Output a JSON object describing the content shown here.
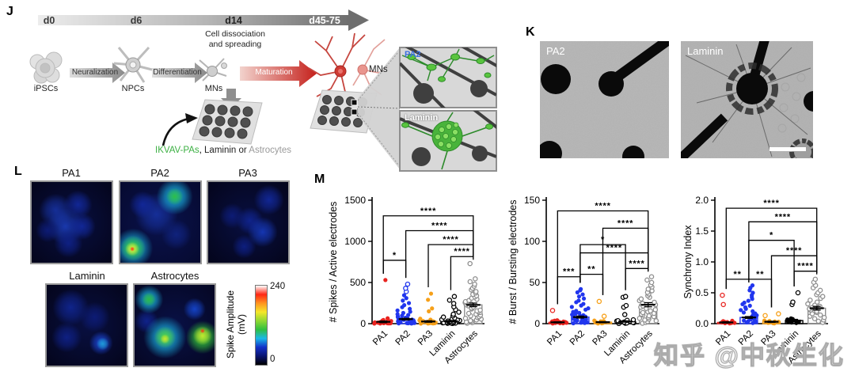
{
  "watermark": "知乎 @中秋生化",
  "panels": {
    "J": {
      "label": "J",
      "timeline": {
        "ticks": [
          "d0",
          "d6",
          "d14",
          "d45-75"
        ]
      },
      "note_line1": "Cell dissociation",
      "note_line2": "and spreading",
      "stage_ipscs": "iPSCs",
      "stage_npcs": "NPCs",
      "stage_mns": "MNs",
      "stage_mns2": "MNs",
      "arrow_neuralization": "Neuralization",
      "arrow_differentiation": "Differentiation",
      "arrow_maturation": "Maturation",
      "substrate_ikvav": "IKVAV-PAs",
      "substrate_sep": ", ",
      "substrate_laminin": "Laminin",
      "substrate_or": " or ",
      "substrate_astrocytes": "Astrocytes",
      "ikvav_color": "#3cb043",
      "astrocyte_color": "#9a9a9a",
      "inset_pa2_label": "PA2",
      "inset_pa2_label_color": "#3b6fe0",
      "inset_laminin_label": "Laminin"
    },
    "K": {
      "label": "K",
      "image1_label": "PA2",
      "image2_label": "Laminin"
    },
    "L": {
      "label": "L",
      "colorbar": {
        "title_line1": "Spike Amplitude",
        "title_line2": "(mV)",
        "max": "240",
        "min": "0",
        "stops": [
          "#000000",
          "#0a1470",
          "#1430c8",
          "#1ab8e8",
          "#2fbf3f",
          "#8fd832",
          "#f5e72a",
          "#ff9420",
          "#ff2613",
          "#ffffff"
        ]
      },
      "heatmaps": [
        {
          "title": "PA1",
          "bg": "#04051c",
          "blobs": [
            [
              30,
              35,
              20,
              "#16309c"
            ],
            [
              58,
              28,
              17,
              "#12289a"
            ],
            [
              42,
              55,
              22,
              "#1a3ab2"
            ],
            [
              63,
              55,
              16,
              "#12289a"
            ],
            [
              46,
              76,
              17,
              "#0f2187"
            ],
            [
              20,
              60,
              14,
              "#0d1c78"
            ]
          ]
        },
        {
          "title": "PA2",
          "bg": "#060a30",
          "blobs": [
            [
              45,
              40,
              26,
              "#16309c"
            ],
            [
              28,
              28,
              16,
              "#12289a"
            ],
            [
              70,
              65,
              18,
              "#10237f"
            ],
            [
              68,
              18,
              22,
              "#1ab8e8"
            ],
            [
              68,
              18,
              10,
              "#2fbf3f"
            ],
            [
              16,
              82,
              24,
              "#1ab8e8"
            ],
            [
              16,
              82,
              15,
              "#35cf3a"
            ],
            [
              15,
              83,
              9,
              "#e8f53a"
            ],
            [
              15,
              83,
              3,
              "#ff2d13"
            ]
          ]
        },
        {
          "title": "PA3",
          "bg": "#04051c",
          "blobs": [
            [
              76,
              22,
              18,
              "#12289a"
            ],
            [
              52,
              48,
              16,
              "#10248f"
            ],
            [
              68,
              62,
              18,
              "#1638b8"
            ],
            [
              30,
              42,
              15,
              "#0d1c78"
            ],
            [
              45,
              80,
              14,
              "#0e1f82"
            ]
          ]
        },
        {
          "title": "Laminin",
          "bg": "#04051c",
          "blobs": [
            [
              30,
              28,
              22,
              "#10258f"
            ],
            [
              60,
              40,
              18,
              "#0d1c78"
            ],
            [
              25,
              65,
              18,
              "#0f2187"
            ],
            [
              68,
              72,
              14,
              "#1c46d8"
            ],
            [
              70,
              73,
              8,
              "#1f9fd8"
            ]
          ]
        },
        {
          "title": "Astrocytes",
          "bg": "#050724",
          "blobs": [
            [
              15,
              45,
              14,
              "#10248f"
            ],
            [
              75,
              30,
              13,
              "#1545cc"
            ],
            [
              18,
              18,
              17,
              "#1ab8e8"
            ],
            [
              18,
              18,
              9,
              "#2eb93c"
            ],
            [
              38,
              65,
              26,
              "#1ab8e8"
            ],
            [
              38,
              65,
              13,
              "#53d437"
            ],
            [
              38,
              67,
              6,
              "#cfe92e"
            ],
            [
              85,
              65,
              20,
              "#35cf3a"
            ],
            [
              85,
              63,
              11,
              "#c8ea2f"
            ],
            [
              85,
              57,
              3,
              "#ff2d13"
            ]
          ]
        }
      ]
    },
    "M": {
      "label": "M"
    }
  },
  "chart_data": [
    {
      "type": "scatter",
      "name": "spikes_per_active_electrode",
      "ylabel": "# Spikes / Active electrodes",
      "xlabel": "",
      "ylim": [
        0,
        1500
      ],
      "yticks": [
        0,
        500,
        1000,
        1500
      ],
      "ytick_labels": [
        "0",
        "500",
        "1000",
        "1500"
      ],
      "categories": [
        "PA1",
        "PA2",
        "PA3",
        "Laminin",
        "Astrocytes"
      ],
      "series": [
        {
          "name": "PA1",
          "color": "#e8231f",
          "marker": "filled",
          "open_above": null,
          "mean": 22,
          "sem": 10,
          "points": [
            1,
            2,
            3,
            4,
            5,
            6,
            8,
            10,
            12,
            14,
            16,
            18,
            20,
            24,
            28,
            32,
            38,
            45,
            55,
            65,
            530
          ]
        },
        {
          "name": "PA2",
          "color": "#2136ee",
          "marker": "filled",
          "open_above": 370,
          "mean": 55,
          "sem": 10,
          "points": [
            2,
            3,
            4,
            5,
            6,
            7,
            8,
            9,
            10,
            11,
            12,
            14,
            16,
            18,
            20,
            22,
            25,
            28,
            31,
            34,
            38,
            42,
            46,
            50,
            55,
            60,
            66,
            72,
            80,
            88,
            96,
            105,
            115,
            130,
            145,
            160,
            180,
            200,
            225,
            250,
            280,
            310,
            345,
            390,
            430,
            480
          ]
        },
        {
          "name": "PA3",
          "color": "#f6a019",
          "marker": "filled",
          "open_above": null,
          "mean": 26,
          "sem": 9,
          "points": [
            1,
            2,
            3,
            4,
            5,
            6,
            8,
            10,
            12,
            14,
            17,
            20,
            24,
            28,
            33,
            40,
            48,
            60,
            150,
            185,
            290,
            365
          ]
        },
        {
          "name": "Laminin",
          "color": "#000000",
          "marker": "open",
          "open_above": null,
          "mean": 30,
          "sem": 9,
          "points": [
            2,
            4,
            6,
            8,
            10,
            12,
            14,
            17,
            20,
            24,
            28,
            33,
            38,
            44,
            50,
            58,
            68,
            80,
            95,
            115,
            140,
            170,
            205,
            245,
            285,
            330
          ]
        },
        {
          "name": "Astrocytes",
          "color": "#8f8f8f",
          "marker": "open",
          "open_above": null,
          "mean": 228,
          "sem": 22,
          "points": [
            5,
            12,
            20,
            28,
            36,
            45,
            55,
            65,
            75,
            85,
            95,
            105,
            115,
            125,
            135,
            145,
            155,
            165,
            178,
            190,
            203,
            216,
            229,
            242,
            255,
            268,
            282,
            296,
            310,
            325,
            340,
            356,
            372,
            390,
            410,
            430,
            455,
            480,
            510,
            545,
            730
          ]
        }
      ],
      "significance": [
        {
          "a": 0,
          "b": 4,
          "sig": "****",
          "y": 1310
        },
        {
          "a": 1,
          "b": 4,
          "sig": "****",
          "y": 1130
        },
        {
          "a": 2,
          "b": 4,
          "sig": "****",
          "y": 960
        },
        {
          "a": 3,
          "b": 4,
          "sig": "****",
          "y": 815
        },
        {
          "a": 0,
          "b": 1,
          "sig": "*",
          "y": 770
        }
      ]
    },
    {
      "type": "scatter",
      "name": "bursts_per_bursting_electrode",
      "ylabel": "# Burst / Bursting electrodes",
      "xlabel": "",
      "ylim": [
        0,
        150
      ],
      "yticks": [
        0,
        50,
        100,
        150
      ],
      "ytick_labels": [
        "0",
        "50",
        "100",
        "150"
      ],
      "categories": [
        "PA1",
        "PA2",
        "PA3",
        "Laminin",
        "Astrocytes"
      ],
      "series": [
        {
          "name": "PA1",
          "color": "#e8231f",
          "marker": "filled",
          "open_above": 10,
          "mean": 1.6,
          "sem": 0.6,
          "points": [
            0.2,
            0.4,
            0.6,
            0.8,
            1,
            1.2,
            1.4,
            1.6,
            1.9,
            2.2,
            2.5,
            2.8,
            3.2,
            3.6,
            4.1,
            16
          ]
        },
        {
          "name": "PA2",
          "color": "#2136ee",
          "marker": "filled",
          "open_above": null,
          "mean": 8,
          "sem": 1.2,
          "points": [
            0.4,
            0.8,
            1.2,
            1.6,
            2,
            2.4,
            2.8,
            3.2,
            3.6,
            4,
            4.5,
            5,
            5.5,
            6,
            6.6,
            7.2,
            7.9,
            8.6,
            9.4,
            10.2,
            11,
            12,
            13,
            14.2,
            15.5,
            17,
            18.6,
            20.3,
            22,
            24,
            26,
            28,
            30.5,
            33,
            35.5,
            38,
            40.5,
            42
          ]
        },
        {
          "name": "PA3",
          "color": "#f6a019",
          "marker": "filled",
          "open_above": 5,
          "mean": 1.8,
          "sem": 0.7,
          "points": [
            0.2,
            0.5,
            0.8,
            1.1,
            1.4,
            1.7,
            2,
            2.4,
            2.8,
            3.2,
            3.7,
            9,
            27
          ]
        },
        {
          "name": "Laminin",
          "color": "#000000",
          "marker": "open",
          "open_above": null,
          "mean": 2.6,
          "sem": 0.8,
          "points": [
            0.2,
            0.5,
            0.8,
            1.1,
            1.5,
            1.9,
            2.3,
            2.7,
            3.1,
            3.6,
            4.1,
            4.7,
            11,
            20,
            22,
            32,
            33
          ]
        },
        {
          "name": "Astrocytes",
          "color": "#8f8f8f",
          "marker": "open",
          "open_above": null,
          "mean": 23,
          "sem": 2.5,
          "points": [
            0.5,
            1.5,
            2.5,
            3.5,
            4.5,
            5.5,
            6.5,
            7.5,
            8.5,
            9.5,
            10.5,
            11.5,
            12.5,
            13.5,
            14.5,
            15.5,
            17,
            18.5,
            20,
            21.5,
            23,
            24.5,
            26,
            28,
            30,
            32,
            34,
            36,
            38,
            40,
            42,
            44.5,
            47,
            50,
            53,
            57
          ]
        }
      ],
      "significance": [
        {
          "a": 0,
          "b": 4,
          "sig": "****",
          "y": 137
        },
        {
          "a": 2,
          "b": 4,
          "sig": "****",
          "y": 116
        },
        {
          "a": 1,
          "b": 3,
          "sig": "*",
          "y": 96
        },
        {
          "a": 1,
          "b": 4,
          "sig": "****",
          "y": 86
        },
        {
          "a": 3,
          "b": 4,
          "sig": "****",
          "y": 67
        },
        {
          "a": 0,
          "b": 1,
          "sig": "***",
          "y": 57
        },
        {
          "a": 1,
          "b": 2,
          "sig": "**",
          "y": 60
        }
      ]
    },
    {
      "type": "scatter",
      "name": "synchrony_index",
      "ylabel": "Synchrony Index",
      "xlabel": "",
      "ylim": [
        0,
        2
      ],
      "yticks": [
        0,
        0.5,
        1,
        1.5,
        2
      ],
      "ytick_labels": [
        "0.0",
        "0.5",
        "1.0",
        "1.5",
        "2.0"
      ],
      "categories": [
        "PA1",
        "PA2",
        "PA3",
        "Laminin",
        "Astrocytes"
      ],
      "series": [
        {
          "name": "PA1",
          "color": "#e8231f",
          "marker": "filled",
          "open_above": 0.2,
          "mean": 0.02,
          "sem": 0.01,
          "points": [
            0.004,
            0.007,
            0.01,
            0.013,
            0.016,
            0.019,
            0.022,
            0.026,
            0.03,
            0.035,
            0.04,
            0.046,
            0.31,
            0.46
          ]
        },
        {
          "name": "PA2",
          "color": "#2136ee",
          "marker": "filled",
          "open_above": null,
          "mean": 0.1,
          "sem": 0.015,
          "points": [
            0.01,
            0.02,
            0.03,
            0.04,
            0.05,
            0.06,
            0.07,
            0.08,
            0.09,
            0.1,
            0.11,
            0.12,
            0.135,
            0.15,
            0.165,
            0.18,
            0.2,
            0.22,
            0.24,
            0.265,
            0.29,
            0.315,
            0.34,
            0.37,
            0.4,
            0.43,
            0.46,
            0.5,
            0.54,
            0.58,
            0.62
          ]
        },
        {
          "name": "PA3",
          "color": "#f6a019",
          "marker": "filled",
          "open_above": 0.1,
          "mean": 0.03,
          "sem": 0.01,
          "points": [
            0.004,
            0.008,
            0.012,
            0.016,
            0.02,
            0.025,
            0.03,
            0.036,
            0.043,
            0.05,
            0.13,
            0.16
          ]
        },
        {
          "name": "Laminin",
          "color": "#000000",
          "marker": "filled",
          "open_above": 0.2,
          "mean": 0.05,
          "sem": 0.02,
          "points": [
            0.01,
            0.018,
            0.026,
            0.034,
            0.042,
            0.05,
            0.058,
            0.067,
            0.076,
            0.086,
            0.31,
            0.35,
            0.5
          ]
        },
        {
          "name": "Astrocytes",
          "color": "#8f8f8f",
          "marker": "open",
          "open_above": null,
          "mean": 0.25,
          "sem": 0.03,
          "points": [
            0.02,
            0.04,
            0.06,
            0.08,
            0.1,
            0.12,
            0.14,
            0.16,
            0.18,
            0.2,
            0.22,
            0.24,
            0.26,
            0.28,
            0.3,
            0.32,
            0.35,
            0.38,
            0.41,
            0.44,
            0.47,
            0.5,
            0.54,
            0.58,
            0.62,
            0.67,
            0.72
          ]
        }
      ],
      "significance": [
        {
          "a": 0,
          "b": 4,
          "sig": "****",
          "y": 1.87
        },
        {
          "a": 1,
          "b": 4,
          "sig": "****",
          "y": 1.65
        },
        {
          "a": 1,
          "b": 3,
          "sig": "*",
          "y": 1.35
        },
        {
          "a": 2,
          "b": 4,
          "sig": "****",
          "y": 1.1
        },
        {
          "a": 3,
          "b": 4,
          "sig": "****",
          "y": 0.85
        },
        {
          "a": 0,
          "b": 1,
          "sig": "**",
          "y": 0.72
        },
        {
          "a": 1,
          "b": 2,
          "sig": "**",
          "y": 0.72
        }
      ]
    }
  ]
}
